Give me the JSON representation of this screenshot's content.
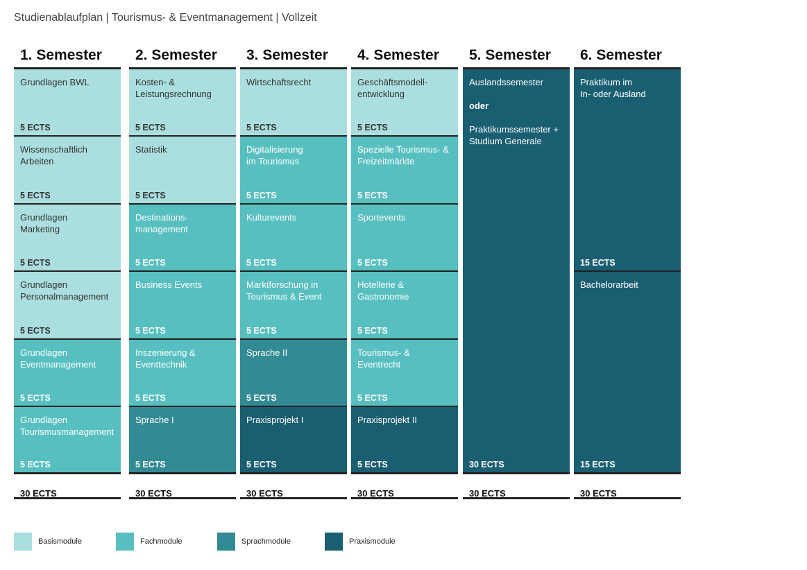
{
  "page_title": "Studienablaufplan | Tourismus- & Eventmanagement | Vollzeit",
  "colors": {
    "basis": "#abdfdf",
    "fach": "#57bfc0",
    "sprach": "#328b94",
    "praxis": "#1a5e72"
  },
  "semesters": [
    {
      "title": "1. Semester",
      "total": "30 ECTS",
      "modules": [
        {
          "lines": [
            "Grundlagen BWL"
          ],
          "ects": "5 ECTS",
          "type": "basis"
        },
        {
          "lines": [
            "Wissenschaftlich",
            "Arbeiten"
          ],
          "ects": "5 ECTS",
          "type": "basis"
        },
        {
          "lines": [
            "Grundlagen",
            "Marketing"
          ],
          "ects": "5 ECTS",
          "type": "basis"
        },
        {
          "lines": [
            "Grundlagen",
            "Personalmanagement"
          ],
          "ects": "5 ECTS",
          "type": "basis"
        },
        {
          "lines": [
            "Grundlagen",
            "Eventmanagement"
          ],
          "ects": "5 ECTS",
          "type": "fach"
        },
        {
          "lines": [
            "Grundlagen",
            "Tourismusmanagement"
          ],
          "ects": "5 ECTS",
          "type": "fach"
        }
      ]
    },
    {
      "title": "2. Semester",
      "total": "30 ECTS",
      "modules": [
        {
          "lines": [
            "Kosten- &",
            "Leistungsrechnung"
          ],
          "ects": "5 ECTS",
          "type": "basis"
        },
        {
          "lines": [
            "Statistik"
          ],
          "ects": "5 ECTS",
          "type": "basis"
        },
        {
          "lines": [
            "Destinations-",
            "management"
          ],
          "ects": "5 ECTS",
          "type": "fach"
        },
        {
          "lines": [
            "Business Events"
          ],
          "ects": "5 ECTS",
          "type": "fach"
        },
        {
          "lines": [
            "Inszenierung &",
            "Eventtechnik"
          ],
          "ects": "5 ECTS",
          "type": "fach"
        },
        {
          "lines": [
            "Sprache I"
          ],
          "ects": "5 ECTS",
          "type": "sprach"
        }
      ]
    },
    {
      "title": "3. Semester",
      "total": "30 ECTS",
      "modules": [
        {
          "lines": [
            "Wirtschaftsrecht"
          ],
          "ects": "5 ECTS",
          "type": "basis"
        },
        {
          "lines": [
            "Digitalisierung",
            "im Tourismus"
          ],
          "ects": "5 ECTS",
          "type": "fach"
        },
        {
          "lines": [
            "Kulturevents"
          ],
          "ects": "5 ECTS",
          "type": "fach"
        },
        {
          "lines": [
            "Marktforschung in",
            "Tourismus & Event"
          ],
          "ects": "5 ECTS",
          "type": "fach"
        },
        {
          "lines": [
            "Sprache II"
          ],
          "ects": "5 ECTS",
          "type": "sprach"
        },
        {
          "lines": [
            "Praxisprojekt I"
          ],
          "ects": "5 ECTS",
          "type": "praxis"
        }
      ]
    },
    {
      "title": "4. Semester",
      "total": "30 ECTS",
      "modules": [
        {
          "lines": [
            "Geschäftsmodell-",
            "entwicklung"
          ],
          "ects": "5 ECTS",
          "type": "basis"
        },
        {
          "lines": [
            "Spezielle Tourismus- &",
            "Freizeitmärkte"
          ],
          "ects": "5 ECTS",
          "type": "fach"
        },
        {
          "lines": [
            "Sportevents"
          ],
          "ects": "5 ECTS",
          "type": "fach"
        },
        {
          "lines": [
            "Hotellerie &",
            "Gastronomie"
          ],
          "ects": "5 ECTS",
          "type": "fach"
        },
        {
          "lines": [
            "Tourismus- &",
            "Eventrecht"
          ],
          "ects": "5 ECTS",
          "type": "fach"
        },
        {
          "lines": [
            "Praxisprojekt II"
          ],
          "ects": "5 ECTS",
          "type": "praxis"
        }
      ]
    },
    {
      "title": "5. Semester",
      "total": "30 ECTS",
      "modules": [
        {
          "lines": [
            "Auslandssemester",
            "",
            "oder",
            "",
            "Praktikumssemester +",
            "Studium Generale"
          ],
          "ects": "30 ECTS",
          "type": "praxis",
          "rows": 6
        }
      ]
    },
    {
      "title": "6. Semester",
      "total": "30 ECTS",
      "modules": [
        {
          "lines": [
            "Praktikum im",
            "In- oder Ausland"
          ],
          "ects": "15 ECTS",
          "type": "praxis",
          "rows": 3
        },
        {
          "lines": [
            "Bachelorarbeit"
          ],
          "ects": "15 ECTS",
          "type": "praxis",
          "rows": 3
        }
      ]
    }
  ],
  "legend": [
    {
      "label": "Basismodule",
      "type": "basis"
    },
    {
      "label": "Fachmodule",
      "type": "fach"
    },
    {
      "label": "Sprachmodule",
      "type": "sprach"
    },
    {
      "label": "Praxismodule",
      "type": "praxis"
    }
  ]
}
